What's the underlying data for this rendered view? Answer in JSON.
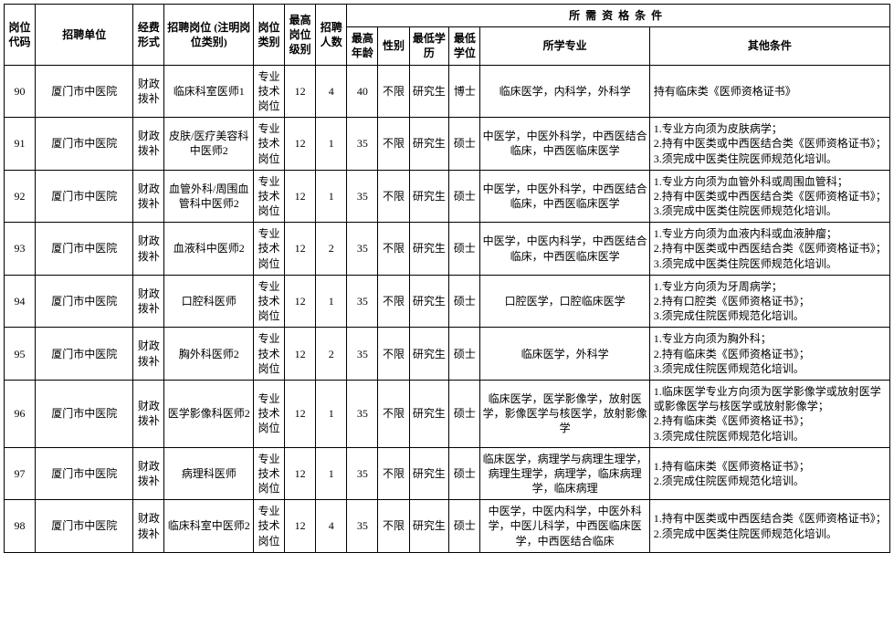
{
  "table": {
    "headers": {
      "col1": "岗位代码",
      "col2": "招聘单位",
      "col3": "经费形式",
      "col4": "招聘岗位\n(注明岗位类别)",
      "col5": "岗位类别",
      "col6": "最高岗位级别",
      "col7": "招聘人数",
      "group": "所需资格条件",
      "col8": "最高年龄",
      "col9": "性别",
      "col10": "最低学历",
      "col11": "最低学位",
      "col12": "所学专业",
      "col13": "其他条件"
    },
    "columns": {
      "widths_pct": [
        3.5,
        11,
        3.5,
        10,
        3.5,
        3.5,
        3.5,
        3.5,
        3.5,
        4.5,
        3.5,
        19,
        27
      ]
    },
    "rows": [
      {
        "code": "90",
        "unit": "厦门市中医院",
        "fund": "财政拨补",
        "position": "临床科室医师1",
        "cat": "专业技术岗位",
        "level": "12",
        "num": "4",
        "age": "40",
        "gender": "不限",
        "edu": "研究生",
        "degree": "博士",
        "major": "临床医学，内科学，外科学",
        "other": "持有临床类《医师资格证书》"
      },
      {
        "code": "91",
        "unit": "厦门市中医院",
        "fund": "财政拨补",
        "position": "皮肤/医疗美容科中医师2",
        "cat": "专业技术岗位",
        "level": "12",
        "num": "1",
        "age": "35",
        "gender": "不限",
        "edu": "研究生",
        "degree": "硕士",
        "major": "中医学，中医外科学，中西医结合临床，中西医临床医学",
        "other": "1.专业方向须为皮肤病学；\n2.持有中医类或中西医结合类《医师资格证书》；\n3.须完成中医类住院医师规范化培训。"
      },
      {
        "code": "92",
        "unit": "厦门市中医院",
        "fund": "财政拨补",
        "position": "血管外科/周围血管科中医师2",
        "cat": "专业技术岗位",
        "level": "12",
        "num": "1",
        "age": "35",
        "gender": "不限",
        "edu": "研究生",
        "degree": "硕士",
        "major": "中医学，中医外科学，中西医结合临床，中西医临床医学",
        "other": "1.专业方向须为血管外科或周围血管科；\n2.持有中医类或中西医结合类《医师资格证书》；\n3.须完成中医类住院医师规范化培训。"
      },
      {
        "code": "93",
        "unit": "厦门市中医院",
        "fund": "财政拨补",
        "position": "血液科中医师2",
        "cat": "专业技术岗位",
        "level": "12",
        "num": "2",
        "age": "35",
        "gender": "不限",
        "edu": "研究生",
        "degree": "硕士",
        "major": "中医学，中医内科学，中西医结合临床，中西医临床医学",
        "other": "1.专业方向须为血液内科或血液肿瘤；\n2.持有中医类或中西医结合类《医师资格证书》；\n3.须完成中医类住院医师规范化培训。"
      },
      {
        "code": "94",
        "unit": "厦门市中医院",
        "fund": "财政拨补",
        "position": "口腔科医师",
        "cat": "专业技术岗位",
        "level": "12",
        "num": "1",
        "age": "35",
        "gender": "不限",
        "edu": "研究生",
        "degree": "硕士",
        "major": "口腔医学，口腔临床医学",
        "other": "1.专业方向须为牙周病学；\n2.持有口腔类《医师资格证书》；\n3.须完成住院医师规范化培训。"
      },
      {
        "code": "95",
        "unit": "厦门市中医院",
        "fund": "财政拨补",
        "position": "胸外科医师2",
        "cat": "专业技术岗位",
        "level": "12",
        "num": "2",
        "age": "35",
        "gender": "不限",
        "edu": "研究生",
        "degree": "硕士",
        "major": "临床医学，外科学",
        "other": "1.专业方向须为胸外科；\n2.持有临床类《医师资格证书》；\n3.须完成住院医师规范化培训。"
      },
      {
        "code": "96",
        "unit": "厦门市中医院",
        "fund": "财政拨补",
        "position": "医学影像科医师2",
        "cat": "专业技术岗位",
        "level": "12",
        "num": "1",
        "age": "35",
        "gender": "不限",
        "edu": "研究生",
        "degree": "硕士",
        "major": "临床医学，医学影像学，放射医学，影像医学与核医学，放射影像学",
        "other": "1.临床医学专业方向须为医学影像学或放射医学或影像医学与核医学或放射影像学；\n2.持有临床类《医师资格证书》；\n3.须完成住院医师规范化培训。"
      },
      {
        "code": "97",
        "unit": "厦门市中医院",
        "fund": "财政拨补",
        "position": "病理科医师",
        "cat": "专业技术岗位",
        "level": "12",
        "num": "1",
        "age": "35",
        "gender": "不限",
        "edu": "研究生",
        "degree": "硕士",
        "major": "临床医学，病理学与病理生理学，病理生理学，病理学，临床病理学，临床病理",
        "other": "1.持有临床类《医师资格证书》；\n2.须完成住院医师规范化培训。"
      },
      {
        "code": "98",
        "unit": "厦门市中医院",
        "fund": "财政拨补",
        "position": "临床科室中医师2",
        "cat": "专业技术岗位",
        "level": "12",
        "num": "4",
        "age": "35",
        "gender": "不限",
        "edu": "研究生",
        "degree": "硕士",
        "major": "中医学，中医内科学，中医外科学，中医儿科学，中西医临床医学，中西医结合临床",
        "other": "1.持有中医类或中西医结合类《医师资格证书》；\n2.须完成中医类住院医师规范化培训。"
      }
    ]
  }
}
